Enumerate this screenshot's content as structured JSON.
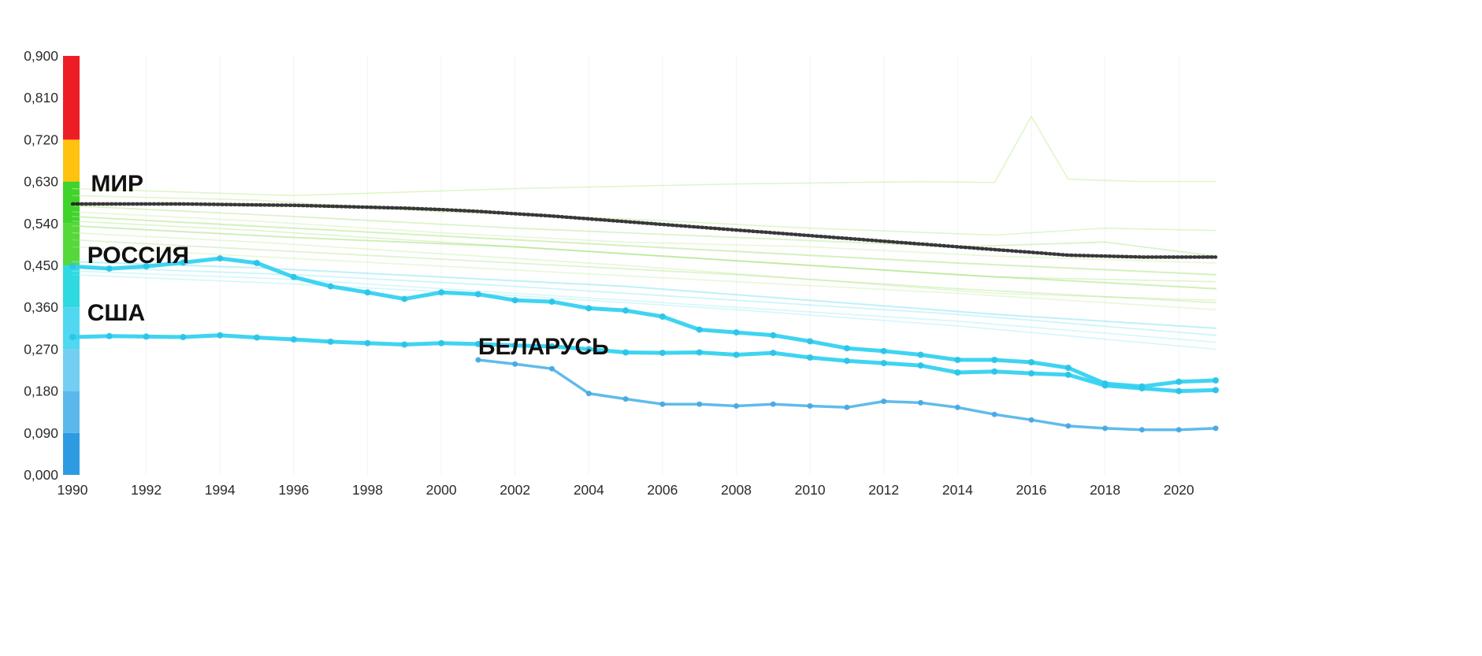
{
  "page": {
    "background": "#ffffff"
  },
  "chart_data": {
    "type": "line",
    "title": "",
    "xlabel": "",
    "ylabel": "",
    "x_domain": [
      1990,
      2021
    ],
    "y_domain": [
      0,
      0.9
    ],
    "grid": "faint-vertical",
    "legend_position": "inline-annotations",
    "x_ticks": [
      {
        "value": 1990,
        "label": "1990"
      },
      {
        "value": 1992,
        "label": "1992"
      },
      {
        "value": 1994,
        "label": "1994"
      },
      {
        "value": 1996,
        "label": "1996"
      },
      {
        "value": 1998,
        "label": "1998"
      },
      {
        "value": 2000,
        "label": "2000"
      },
      {
        "value": 2002,
        "label": "2002"
      },
      {
        "value": 2004,
        "label": "2004"
      },
      {
        "value": 2006,
        "label": "2006"
      },
      {
        "value": 2008,
        "label": "2008"
      },
      {
        "value": 2010,
        "label": "2010"
      },
      {
        "value": 2012,
        "label": "2012"
      },
      {
        "value": 2014,
        "label": "2014"
      },
      {
        "value": 2016,
        "label": "2016"
      },
      {
        "value": 2018,
        "label": "2018"
      },
      {
        "value": 2020,
        "label": "2020"
      }
    ],
    "y_ticks": [
      {
        "value": 0.9,
        "label": "0,900"
      },
      {
        "value": 0.81,
        "label": "0,810"
      },
      {
        "value": 0.72,
        "label": "0,720"
      },
      {
        "value": 0.63,
        "label": "0,630"
      },
      {
        "value": 0.54,
        "label": "0,540"
      },
      {
        "value": 0.45,
        "label": "0,450"
      },
      {
        "value": 0.36,
        "label": "0,360"
      },
      {
        "value": 0.27,
        "label": "0,270"
      },
      {
        "value": 0.18,
        "label": "0,180"
      },
      {
        "value": 0.09,
        "label": "0,090"
      },
      {
        "value": 0.0,
        "label": "0,000"
      }
    ],
    "color_scale_bar": {
      "segments": [
        {
          "from": 0.72,
          "to": 0.9,
          "color": "#ee1c25"
        },
        {
          "from": 0.63,
          "to": 0.72,
          "color": "#ffc20e"
        },
        {
          "from": 0.54,
          "to": 0.63,
          "color": "#3fd32c"
        },
        {
          "from": 0.45,
          "to": 0.54,
          "color": "#55d83a"
        },
        {
          "from": 0.36,
          "to": 0.45,
          "color": "#2ed9e0"
        },
        {
          "from": 0.27,
          "to": 0.36,
          "color": "#4fd8f0"
        },
        {
          "from": 0.18,
          "to": 0.27,
          "color": "#74cef2"
        },
        {
          "from": 0.09,
          "to": 0.18,
          "color": "#5cb8ec"
        },
        {
          "from": 0.0,
          "to": 0.09,
          "color": "#2d9be2"
        }
      ]
    },
    "series": [
      {
        "id": "mir",
        "label": "МИР",
        "color": "#1c1c1c",
        "style": "dotted",
        "width": 4.4,
        "opacity": 0.88,
        "markers": false,
        "start_year": 1990,
        "values": [
          0.582,
          0.582,
          0.582,
          0.582,
          0.581,
          0.58,
          0.579,
          0.577,
          0.575,
          0.573,
          0.57,
          0.566,
          0.561,
          0.556,
          0.55,
          0.544,
          0.538,
          0.532,
          0.526,
          0.52,
          0.514,
          0.508,
          0.502,
          0.496,
          0.49,
          0.484,
          0.478,
          0.472,
          0.47,
          0.468,
          0.468,
          0.468
        ]
      },
      {
        "id": "rossiya",
        "label": "РОССИЯ",
        "color": "#35d2f0",
        "marker_color": "#2cc4e6",
        "style": "solid",
        "width": 5,
        "opacity": 0.95,
        "markers": true,
        "marker_radius": 4,
        "start_year": 1990,
        "values": [
          0.448,
          0.443,
          0.448,
          0.456,
          0.465,
          0.455,
          0.425,
          0.405,
          0.392,
          0.378,
          0.392,
          0.388,
          0.375,
          0.372,
          0.358,
          0.353,
          0.34,
          0.312,
          0.306,
          0.3,
          0.287,
          0.272,
          0.266,
          0.258,
          0.247,
          0.247,
          0.242,
          0.23,
          0.196,
          0.19,
          0.2,
          0.203
        ]
      },
      {
        "id": "ssha",
        "label": "США",
        "color": "#35d2f0",
        "marker_color": "#2cc4e6",
        "style": "solid",
        "width": 5,
        "opacity": 0.95,
        "markers": true,
        "marker_radius": 4,
        "start_year": 1990,
        "values": [
          0.296,
          0.298,
          0.297,
          0.296,
          0.3,
          0.295,
          0.291,
          0.286,
          0.283,
          0.28,
          0.283,
          0.281,
          0.278,
          0.276,
          0.27,
          0.263,
          0.262,
          0.263,
          0.258,
          0.262,
          0.252,
          0.245,
          0.24,
          0.235,
          0.22,
          0.222,
          0.218,
          0.215,
          0.192,
          0.186,
          0.18,
          0.182
        ]
      },
      {
        "id": "belarus",
        "label": "БЕЛАРУСЬ",
        "color": "#57b7ea",
        "marker_color": "#49a9e0",
        "style": "solid",
        "width": 3.5,
        "opacity": 0.95,
        "markers": true,
        "marker_radius": 3.5,
        "start_year": 2001,
        "values": [
          0.247,
          0.238,
          0.228,
          0.175,
          0.163,
          0.152,
          0.152,
          0.148,
          0.152,
          0.148,
          0.145,
          0.158,
          0.155,
          0.145,
          0.13,
          0.118,
          0.105,
          0.1,
          0.097,
          0.097,
          0.1
        ]
      }
    ],
    "annotations": [
      {
        "text": "МИР",
        "year": 1990.5,
        "value": 0.609,
        "color": "#111111"
      },
      {
        "text": "РОССИЯ",
        "year": 1990.4,
        "value": 0.455,
        "color": "#111111"
      },
      {
        "text": "США",
        "year": 1990.4,
        "value": 0.332,
        "color": "#111111"
      },
      {
        "text": "БЕЛАРУСЬ",
        "year": 2001.0,
        "value": 0.259,
        "color": "#111111"
      }
    ],
    "background_series": [
      {
        "color": "#c6ef9a",
        "opacity": 0.55,
        "width": 1.6,
        "points": [
          [
            1990,
            0.615
          ],
          [
            1996,
            0.6
          ],
          [
            2002,
            0.615
          ],
          [
            2008,
            0.625
          ],
          [
            2013,
            0.63
          ],
          [
            2015,
            0.628
          ],
          [
            2016,
            0.77
          ],
          [
            2017,
            0.635
          ],
          [
            2019,
            0.63
          ],
          [
            2021,
            0.63
          ]
        ]
      },
      {
        "color": "#b9ea8c",
        "opacity": 0.45,
        "width": 1.6,
        "points": [
          [
            1990,
            0.6
          ],
          [
            1995,
            0.59
          ],
          [
            2000,
            0.565
          ],
          [
            2005,
            0.55
          ],
          [
            2010,
            0.53
          ],
          [
            2015,
            0.515
          ],
          [
            2018,
            0.53
          ],
          [
            2021,
            0.525
          ]
        ]
      },
      {
        "color": "#aee584",
        "opacity": 0.45,
        "width": 1.8,
        "points": [
          [
            1990,
            0.578
          ],
          [
            1996,
            0.555
          ],
          [
            2002,
            0.53
          ],
          [
            2008,
            0.51
          ],
          [
            2014,
            0.49
          ],
          [
            2018,
            0.5
          ],
          [
            2021,
            0.47
          ]
        ]
      },
      {
        "color": "#c0ee96",
        "opacity": 0.4,
        "width": 1.6,
        "points": [
          [
            1990,
            0.565
          ],
          [
            1995,
            0.545
          ],
          [
            2000,
            0.52
          ],
          [
            2005,
            0.5
          ],
          [
            2010,
            0.49
          ],
          [
            2015,
            0.47
          ],
          [
            2021,
            0.455
          ]
        ]
      },
      {
        "color": "#a8e47e",
        "opacity": 0.5,
        "width": 2.0,
        "points": [
          [
            1990,
            0.555
          ],
          [
            1996,
            0.53
          ],
          [
            2002,
            0.505
          ],
          [
            2008,
            0.48
          ],
          [
            2014,
            0.455
          ],
          [
            2021,
            0.43
          ]
        ]
      },
      {
        "color": "#b4e98a",
        "opacity": 0.45,
        "width": 1.6,
        "points": [
          [
            1990,
            0.545
          ],
          [
            1995,
            0.525
          ],
          [
            2000,
            0.5
          ],
          [
            2005,
            0.475
          ],
          [
            2010,
            0.45
          ],
          [
            2015,
            0.425
          ],
          [
            2021,
            0.415
          ]
        ]
      },
      {
        "color": "#9fe074",
        "opacity": 0.5,
        "width": 2.0,
        "points": [
          [
            1990,
            0.535
          ],
          [
            1996,
            0.51
          ],
          [
            2002,
            0.49
          ],
          [
            2008,
            0.46
          ],
          [
            2014,
            0.43
          ],
          [
            2021,
            0.4
          ]
        ]
      },
      {
        "color": "#c2ef9c",
        "opacity": 0.45,
        "width": 1.6,
        "points": [
          [
            1990,
            0.52
          ],
          [
            1995,
            0.5
          ],
          [
            2000,
            0.475
          ],
          [
            2005,
            0.45
          ],
          [
            2010,
            0.42
          ],
          [
            2015,
            0.39
          ],
          [
            2021,
            0.375
          ]
        ]
      },
      {
        "color": "#ade288",
        "opacity": 0.4,
        "width": 1.8,
        "points": [
          [
            1990,
            0.505
          ],
          [
            1996,
            0.48
          ],
          [
            2002,
            0.455
          ],
          [
            2008,
            0.43
          ],
          [
            2014,
            0.4
          ],
          [
            2021,
            0.37
          ]
        ]
      },
      {
        "color": "#b9ea8c",
        "opacity": 0.35,
        "width": 1.6,
        "points": [
          [
            1990,
            0.49
          ],
          [
            1996,
            0.465
          ],
          [
            2002,
            0.44
          ],
          [
            2008,
            0.415
          ],
          [
            2014,
            0.39
          ],
          [
            2021,
            0.355
          ]
        ]
      },
      {
        "color": "#7de4f2",
        "opacity": 0.5,
        "width": 2.0,
        "points": [
          [
            1990,
            0.458
          ],
          [
            1995,
            0.445
          ],
          [
            2000,
            0.425
          ],
          [
            2005,
            0.405
          ],
          [
            2010,
            0.375
          ],
          [
            2015,
            0.345
          ],
          [
            2021,
            0.315
          ]
        ]
      },
      {
        "color": "#8fe8f4",
        "opacity": 0.45,
        "width": 1.8,
        "points": [
          [
            1990,
            0.447
          ],
          [
            1996,
            0.43
          ],
          [
            2002,
            0.405
          ],
          [
            2008,
            0.375
          ],
          [
            2014,
            0.345
          ],
          [
            2021,
            0.3
          ]
        ]
      },
      {
        "color": "#9debf5",
        "opacity": 0.4,
        "width": 1.8,
        "points": [
          [
            1990,
            0.438
          ],
          [
            1996,
            0.42
          ],
          [
            2002,
            0.39
          ],
          [
            2008,
            0.36
          ],
          [
            2014,
            0.33
          ],
          [
            2021,
            0.285
          ]
        ]
      },
      {
        "color": "#86e6f3",
        "opacity": 0.35,
        "width": 1.6,
        "points": [
          [
            1990,
            0.43
          ],
          [
            1996,
            0.41
          ],
          [
            2002,
            0.385
          ],
          [
            2008,
            0.355
          ],
          [
            2014,
            0.32
          ],
          [
            2021,
            0.27
          ]
        ]
      }
    ],
    "styles": {
      "tick_label_color": "#2b2b2b",
      "grid_color": "rgba(0,0,0,0.05)",
      "annotation_font_size": 30,
      "tick_font_size": 17.5
    }
  }
}
